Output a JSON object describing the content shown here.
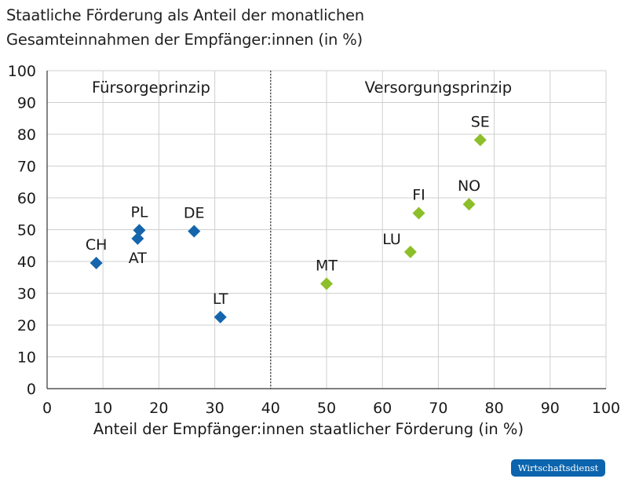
{
  "title_line1": "Staatliche Förderung als Anteil der monatlichen",
  "title_line2": "Gesamteinnahmen der Empfänger:innen (in %)",
  "badge": "Wirtschaftsdienst",
  "colors": {
    "fuersorge": "#1565ad",
    "versorgung": "#8dbf2a",
    "grid": "#cfcfcf",
    "axis": "#333333"
  },
  "chart_data": {
    "type": "scatter",
    "xlabel": "Anteil der Empfänger:innen staatlicher Förderung (in %)",
    "ylabel": "",
    "xlim": [
      0,
      100
    ],
    "ylim": [
      0,
      100
    ],
    "x_ticks": [
      0,
      10,
      20,
      30,
      40,
      50,
      60,
      70,
      80,
      90,
      100
    ],
    "y_ticks": [
      0,
      10,
      20,
      30,
      40,
      50,
      60,
      70,
      80,
      90,
      100
    ],
    "grid": true,
    "divider_x": 40,
    "regions": [
      {
        "label": "Fürsorgeprinzip",
        "side": "left"
      },
      {
        "label": "Versorgungsprinzip",
        "side": "right"
      }
    ],
    "series": [
      {
        "group": "fuersorge",
        "points": [
          {
            "label": "CH",
            "x": 8.8,
            "y": 39.5
          },
          {
            "label": "PL",
            "x": 16.5,
            "y": 49.8
          },
          {
            "label": "AT",
            "x": 16.2,
            "y": 47.2
          },
          {
            "label": "DE",
            "x": 26.3,
            "y": 49.5
          },
          {
            "label": "LT",
            "x": 31.0,
            "y": 22.5
          }
        ]
      },
      {
        "group": "versorgung",
        "points": [
          {
            "label": "MT",
            "x": 50.0,
            "y": 33.0
          },
          {
            "label": "LU",
            "x": 65.0,
            "y": 43.0
          },
          {
            "label": "FI",
            "x": 66.5,
            "y": 55.2
          },
          {
            "label": "NO",
            "x": 75.5,
            "y": 58.0
          },
          {
            "label": "SE",
            "x": 77.5,
            "y": 78.2
          }
        ]
      }
    ]
  }
}
